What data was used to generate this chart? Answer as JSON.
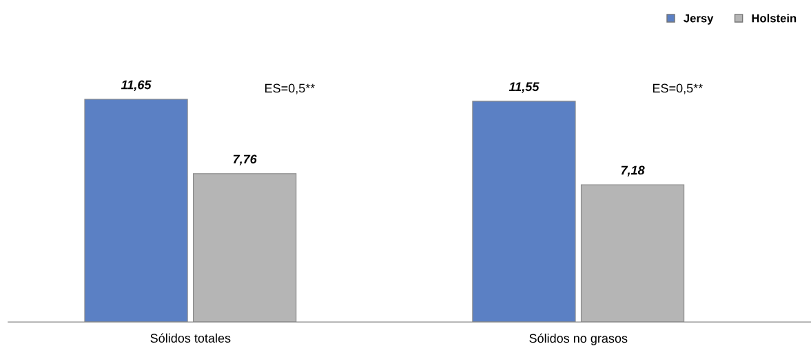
{
  "chart_data": {
    "type": "bar",
    "categories": [
      "Sólidos totales",
      "Sólidos no grasos"
    ],
    "series": [
      {
        "name": "Jersy",
        "color": "#5b80c4",
        "values": [
          11.65,
          11.55
        ],
        "value_labels": [
          "11,65",
          "11,55"
        ]
      },
      {
        "name": "Holstein",
        "color": "#b5b5b5",
        "values": [
          7.76,
          7.18
        ],
        "value_labels": [
          "7,76",
          "7,18"
        ]
      }
    ],
    "annotations": [
      "ES=0,5**",
      "ES=0,5**"
    ],
    "legend": "top right",
    "grid": false
  }
}
